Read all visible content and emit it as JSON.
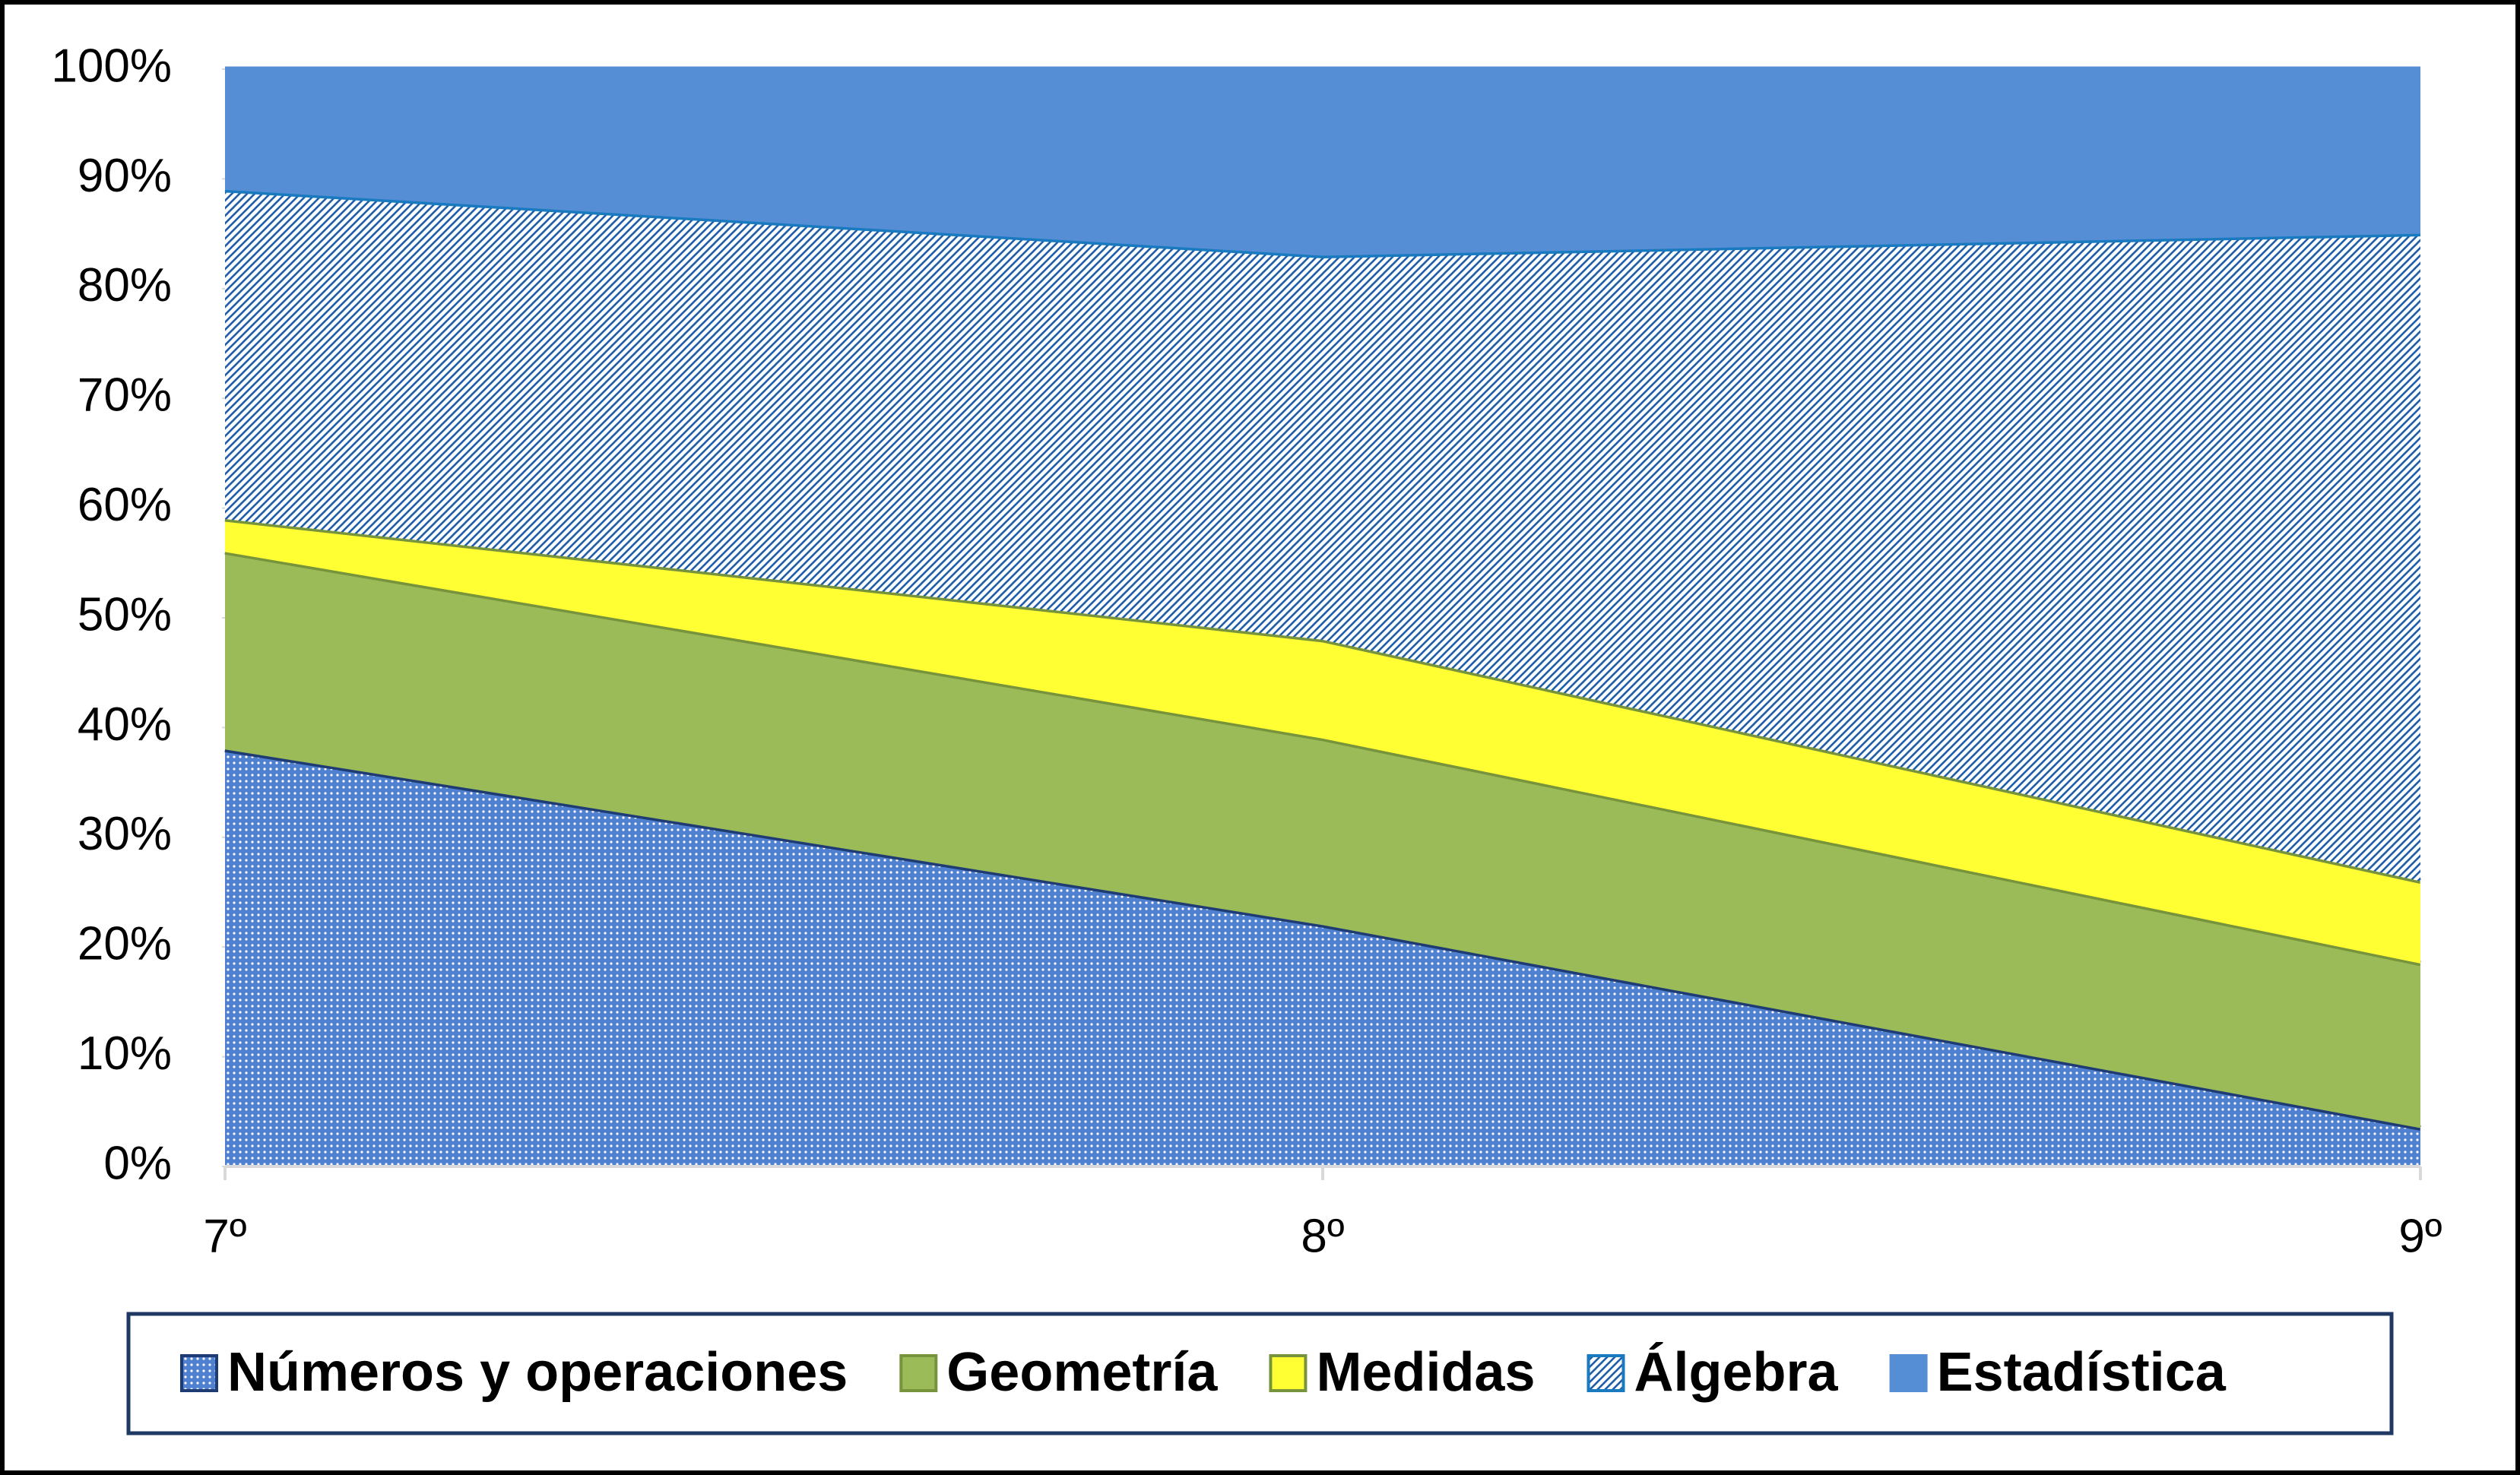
{
  "chart_data": {
    "type": "area_stacked",
    "categories": [
      "7º",
      "8º",
      "9º"
    ],
    "series": [
      {
        "name": "Números y operaciones",
        "color": "#4f81d0",
        "pattern": "dots",
        "line_color": "#1f3b73",
        "values": [
          38,
          22,
          3.5
        ]
      },
      {
        "name": "Geometría",
        "color": "#9bbb59",
        "pattern": "solid",
        "line_color": "#77933c",
        "values": [
          18,
          17,
          15
        ]
      },
      {
        "name": "Medidas",
        "color": "#ffff33",
        "pattern": "solid",
        "line_color": "#77933c",
        "values": [
          3,
          9,
          7.5
        ]
      },
      {
        "name": "Álgebra",
        "color": "#1f5fa8",
        "pattern": "hatch",
        "line_color": "#1a7abf",
        "values": [
          30,
          35,
          59
        ]
      },
      {
        "name": "Estadística",
        "color": "#558ed5",
        "pattern": "solid",
        "line_color": "#558ed5",
        "values": [
          11,
          17,
          15
        ]
      }
    ],
    "ylim": [
      0,
      100
    ],
    "yticks": [
      {
        "value": 0,
        "label": "0%"
      },
      {
        "value": 10,
        "label": "10%"
      },
      {
        "value": 20,
        "label": "20%"
      },
      {
        "value": 30,
        "label": "30%"
      },
      {
        "value": 40,
        "label": "40%"
      },
      {
        "value": 50,
        "label": "50%"
      },
      {
        "value": 60,
        "label": "60%"
      },
      {
        "value": 70,
        "label": "70%"
      },
      {
        "value": 80,
        "label": "80%"
      },
      {
        "value": 90,
        "label": "90%"
      },
      {
        "value": 100,
        "label": "100%"
      }
    ],
    "grid": false,
    "legend": "bottom"
  }
}
